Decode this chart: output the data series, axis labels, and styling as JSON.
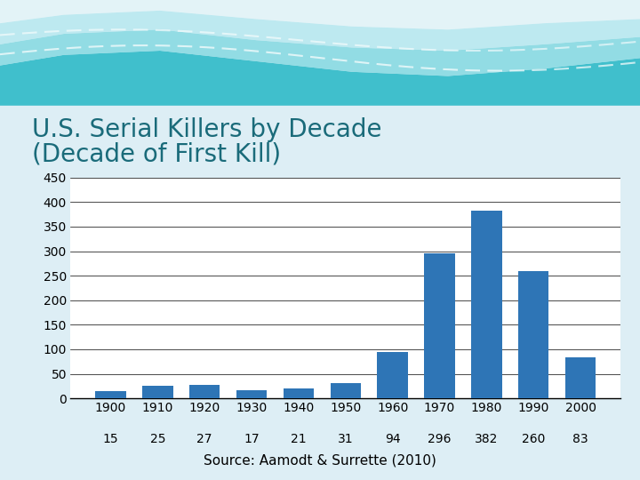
{
  "title_line1": "U.S. Serial Killers by Decade",
  "title_line2": "(Decade of First Kill)",
  "title_color": "#1a6b7a",
  "categories": [
    "1900",
    "1910",
    "1920",
    "1930",
    "1940",
    "1950",
    "1960",
    "1970",
    "1980",
    "1990",
    "2000"
  ],
  "values": [
    15,
    25,
    27,
    17,
    21,
    31,
    94,
    296,
    382,
    260,
    83
  ],
  "bar_color": "#2e75b6",
  "ylim": [
    0,
    450
  ],
  "yticks": [
    0,
    50,
    100,
    150,
    200,
    250,
    300,
    350,
    400,
    450
  ],
  "source_text": "Source: Aamodt & Surrette (2010)",
  "page_bg_color": "#ddeef5",
  "chart_bg_color": "#ffffff",
  "title_fontsize": 20,
  "tick_fontsize": 10,
  "source_fontsize": 11,
  "wave_color1": "#40bfcc",
  "wave_color2": "#80d8e0",
  "wave_color3": "#b0e8ef",
  "wave_white": "#e8f8fa"
}
